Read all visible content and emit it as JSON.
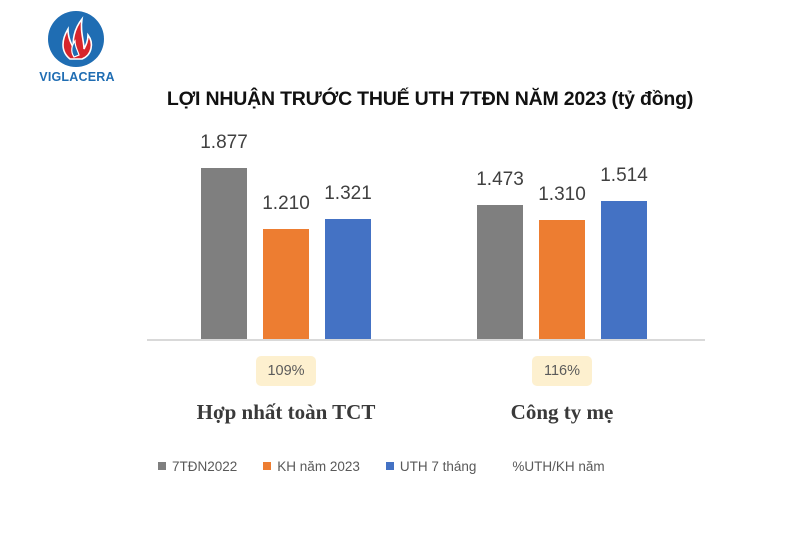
{
  "brand": {
    "name": "VIGLACERA",
    "colors": {
      "circle": "#1f6db3",
      "flame": "#d7262c"
    }
  },
  "chart_data": {
    "type": "bar",
    "title": "LỢI NHUẬN TRƯỚC THUẾ UTH 7TĐN NĂM 2023 (tỷ đồng)",
    "xlabel": "",
    "ylabel": "",
    "categories": [
      "Hợp nhất toàn TCT",
      "Công ty mẹ"
    ],
    "series": [
      {
        "name": "7TĐN2022",
        "color": "#7f7f7f",
        "values": [
          1877,
          1473
        ],
        "labels": [
          "1.877",
          "1.473"
        ]
      },
      {
        "name": "KH năm 2023",
        "color": "#ed7d31",
        "values": [
          1210,
          1310
        ],
        "labels": [
          "1.210",
          "1.310"
        ]
      },
      {
        "name": "UTH 7 tháng",
        "color": "#4472c4",
        "values": [
          1321,
          1514
        ],
        "labels": [
          "1.321",
          "1.514"
        ]
      }
    ],
    "ratio_series": {
      "name": "%UTH/KH năm",
      "values": [
        109,
        116
      ],
      "labels": [
        "109%",
        "116%"
      ],
      "color": "#fdf0cf"
    },
    "grid": false,
    "legend_position": "bottom",
    "ylim": [
      0,
      2000
    ]
  },
  "legend": [
    {
      "label": "7TĐN2022",
      "color": "#7f7f7f"
    },
    {
      "label": "KH năm 2023",
      "color": "#ed7d31"
    },
    {
      "label": "UTH 7 tháng",
      "color": "#4472c4"
    },
    {
      "label": "%UTH/KH năm",
      "color": null
    }
  ]
}
